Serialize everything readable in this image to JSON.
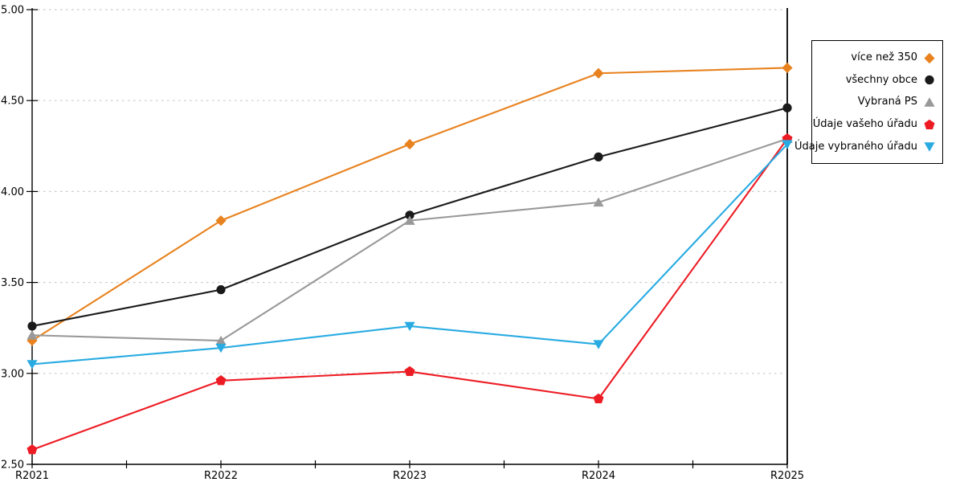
{
  "chart_data": {
    "type": "line",
    "title": "",
    "xlabel": "",
    "ylabel": "",
    "categories": [
      "R2021",
      "R2022",
      "R2023",
      "R2024",
      "R2025"
    ],
    "ylim": [
      2.5,
      5.0
    ],
    "ytick_interval": 0.5,
    "ytick_labels": [
      "2.50",
      "3.00",
      "3.50",
      "4.00",
      "4.50",
      "5.00"
    ],
    "grid": "horizontal-dotted",
    "grid_color": "#c9c9c9",
    "axis_color": "#000000",
    "background_color": "#ffffff",
    "legend_position": "right-outside",
    "x_minor_ticks_between_categories": true,
    "right_border_line_at_last_category": true,
    "series": [
      {
        "name": "více než 350",
        "color": "#e8821e",
        "marker": "diamond",
        "values": [
          3.18,
          3.84,
          4.26,
          4.65,
          4.68
        ]
      },
      {
        "name": "všechny obce",
        "color": "#1a1a1a",
        "marker": "circle",
        "values": [
          3.26,
          3.46,
          3.87,
          4.19,
          4.46
        ]
      },
      {
        "name": "Vybraná PS",
        "color": "#999999",
        "marker": "triangle-up",
        "values": [
          3.21,
          3.18,
          3.84,
          3.94,
          4.29
        ]
      },
      {
        "name": "Údaje vašeho úřadu",
        "color": "#ed1c24",
        "marker": "pentagon",
        "values": [
          2.58,
          2.96,
          3.01,
          2.86,
          4.29
        ]
      },
      {
        "name": "Údaje vybraného úřadu",
        "color": "#29abe2",
        "marker": "triangle-down",
        "values": [
          3.05,
          3.14,
          3.26,
          3.16,
          4.26
        ]
      }
    ]
  }
}
